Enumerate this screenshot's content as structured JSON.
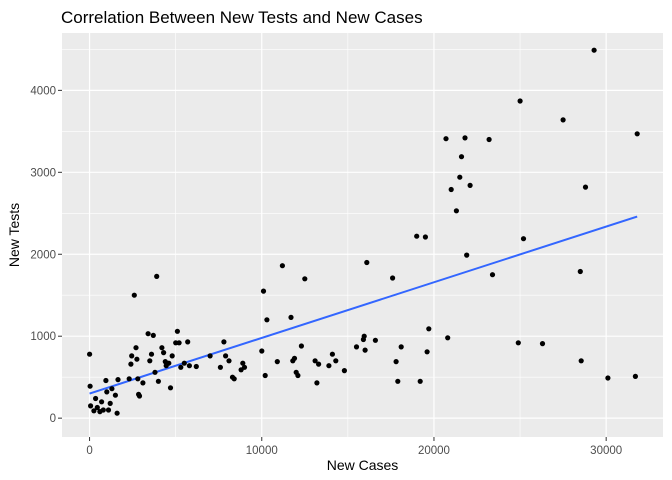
{
  "chart_data": {
    "type": "scatter",
    "title": "Correlation Between New Tests and New Cases",
    "xlabel": "New Cases",
    "ylabel": "New Tests",
    "xlim": [
      -1600,
      33300
    ],
    "ylim": [
      -230,
      4700
    ],
    "x_ticks": [
      0,
      10000,
      20000,
      30000
    ],
    "x_tick_labels": [
      "0",
      "10000",
      "20000",
      "30000"
    ],
    "x_minor_ticks": [
      5000,
      15000,
      25000
    ],
    "y_ticks": [
      0,
      1000,
      2000,
      3000,
      4000
    ],
    "y_tick_labels": [
      "0",
      "1000",
      "2000",
      "3000",
      "4000"
    ],
    "y_minor_ticks": [
      500,
      1500,
      2500,
      3500,
      4500
    ],
    "grid": true,
    "legend": "none",
    "colors": {
      "panel": "#ebebeb",
      "grid": "#ffffff",
      "points": "#000000",
      "trend": "#3366ff"
    },
    "points": [
      [
        0,
        780
      ],
      [
        30,
        390
      ],
      [
        60,
        150
      ],
      [
        250,
        90
      ],
      [
        350,
        240
      ],
      [
        450,
        130
      ],
      [
        600,
        80
      ],
      [
        700,
        200
      ],
      [
        800,
        100
      ],
      [
        950,
        460
      ],
      [
        1000,
        320
      ],
      [
        1100,
        100
      ],
      [
        1200,
        180
      ],
      [
        1300,
        360
      ],
      [
        1500,
        280
      ],
      [
        1600,
        60
      ],
      [
        1650,
        470
      ],
      [
        2300,
        480
      ],
      [
        2400,
        660
      ],
      [
        2450,
        760
      ],
      [
        2600,
        1500
      ],
      [
        2700,
        860
      ],
      [
        2750,
        720
      ],
      [
        2800,
        480
      ],
      [
        2850,
        290
      ],
      [
        2900,
        270
      ],
      [
        3100,
        430
      ],
      [
        3400,
        1030
      ],
      [
        3500,
        700
      ],
      [
        3600,
        780
      ],
      [
        3700,
        1010
      ],
      [
        3800,
        560
      ],
      [
        3900,
        1730
      ],
      [
        4000,
        450
      ],
      [
        4200,
        860
      ],
      [
        4300,
        800
      ],
      [
        4400,
        690
      ],
      [
        4450,
        640
      ],
      [
        4600,
        670
      ],
      [
        4700,
        370
      ],
      [
        4800,
        760
      ],
      [
        5000,
        920
      ],
      [
        5100,
        1060
      ],
      [
        5200,
        920
      ],
      [
        5300,
        620
      ],
      [
        5500,
        670
      ],
      [
        5700,
        930
      ],
      [
        5800,
        640
      ],
      [
        6200,
        630
      ],
      [
        7000,
        760
      ],
      [
        7600,
        620
      ],
      [
        7800,
        930
      ],
      [
        7900,
        760
      ],
      [
        8100,
        700
      ],
      [
        8300,
        500
      ],
      [
        8400,
        480
      ],
      [
        8800,
        590
      ],
      [
        8900,
        670
      ],
      [
        9000,
        620
      ],
      [
        10000,
        820
      ],
      [
        10100,
        1550
      ],
      [
        10200,
        520
      ],
      [
        10300,
        1200
      ],
      [
        10900,
        690
      ],
      [
        11200,
        1860
      ],
      [
        11700,
        1230
      ],
      [
        11800,
        700
      ],
      [
        11900,
        730
      ],
      [
        12000,
        560
      ],
      [
        12100,
        520
      ],
      [
        12300,
        880
      ],
      [
        12500,
        1700
      ],
      [
        13100,
        700
      ],
      [
        13200,
        430
      ],
      [
        13300,
        660
      ],
      [
        13900,
        640
      ],
      [
        14100,
        780
      ],
      [
        14300,
        700
      ],
      [
        14800,
        580
      ],
      [
        15500,
        870
      ],
      [
        15900,
        960
      ],
      [
        15950,
        1000
      ],
      [
        16000,
        830
      ],
      [
        16100,
        1900
      ],
      [
        16600,
        950
      ],
      [
        17600,
        1710
      ],
      [
        17800,
        690
      ],
      [
        17900,
        450
      ],
      [
        18100,
        870
      ],
      [
        19000,
        2220
      ],
      [
        19200,
        450
      ],
      [
        19500,
        2210
      ],
      [
        19600,
        810
      ],
      [
        19700,
        1090
      ],
      [
        20700,
        3410
      ],
      [
        20800,
        980
      ],
      [
        21000,
        2790
      ],
      [
        21300,
        2530
      ],
      [
        21500,
        2940
      ],
      [
        21600,
        3190
      ],
      [
        21800,
        3420
      ],
      [
        21900,
        1990
      ],
      [
        22100,
        2840
      ],
      [
        23200,
        3400
      ],
      [
        23400,
        1750
      ],
      [
        24900,
        920
      ],
      [
        25000,
        3870
      ],
      [
        25200,
        2190
      ],
      [
        26300,
        910
      ],
      [
        27500,
        3640
      ],
      [
        28500,
        1790
      ],
      [
        28550,
        700
      ],
      [
        28800,
        2820
      ],
      [
        29300,
        4490
      ],
      [
        30100,
        490
      ],
      [
        31700,
        510
      ],
      [
        31800,
        3470
      ]
    ],
    "trend_line": {
      "x": [
        0,
        31800
      ],
      "y": [
        300,
        2460
      ]
    }
  }
}
